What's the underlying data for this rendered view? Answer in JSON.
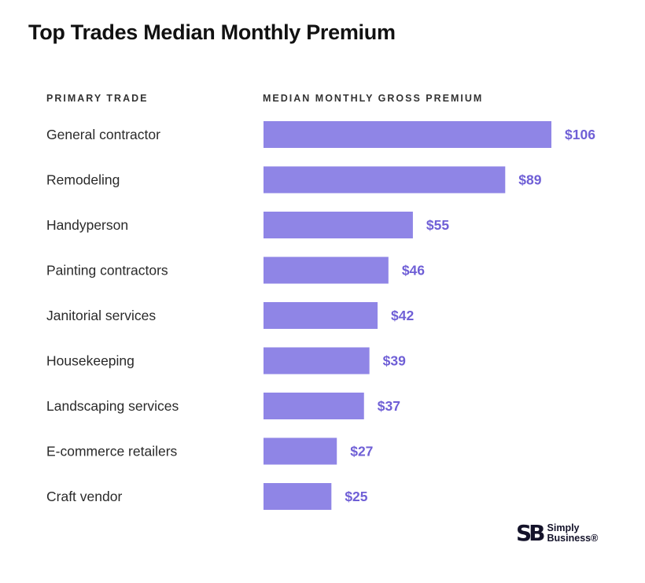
{
  "title": "Top Trades Median Monthly Premium",
  "column_headers": {
    "trade": "PRIMARY TRADE",
    "premium": "MEDIAN MONTHLY GROSS PREMIUM"
  },
  "colors": {
    "bar": "#8f85e6",
    "value_text": "#6f5fd6",
    "title_text": "#111111",
    "logo": "#14132a"
  },
  "logo": {
    "mark": "SB",
    "line1": "Simply",
    "line2": "Business®"
  },
  "chart_data": {
    "type": "bar",
    "orientation": "horizontal",
    "title": "Top Trades Median Monthly Premium",
    "xlabel": "MEDIAN MONTHLY GROSS PREMIUM",
    "ylabel": "PRIMARY TRADE",
    "categories": [
      "General contractor",
      "Remodeling",
      "Handyperson",
      "Painting contractors",
      "Janitorial services",
      "Housekeeping",
      "Landscaping services",
      "E-commerce retailers",
      "Craft vendor"
    ],
    "values": [
      106,
      89,
      55,
      46,
      42,
      39,
      37,
      27,
      25
    ],
    "value_labels": [
      "$106",
      "$89",
      "$55",
      "$46",
      "$42",
      "$39",
      "$37",
      "$27",
      "$25"
    ],
    "xlim": [
      0,
      106
    ],
    "grid": false,
    "legend": "none"
  }
}
